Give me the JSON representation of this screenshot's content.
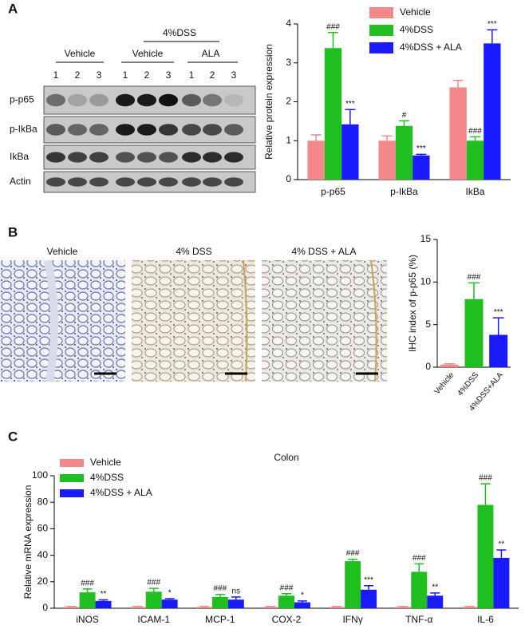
{
  "blot": {
    "group_label": "4%DSS",
    "groups": [
      "Vehicle",
      "Vehicle",
      "ALA"
    ],
    "lanes": [
      "1",
      "2",
      "3",
      "1",
      "2",
      "3",
      "1",
      "2",
      "3"
    ],
    "rows": [
      "p-p65",
      "p-IkBa",
      "IkBa",
      "Actin"
    ]
  },
  "ihc": {
    "images": [
      "Vehicle",
      "4% DSS",
      "4% DSS + ALA"
    ]
  },
  "chart_data": [
    {
      "type": "bar",
      "panel_label": "A",
      "y_label": "Relative protein expression",
      "categories": [
        "p-p65",
        "p-IkBa",
        "IkBa"
      ],
      "series": [
        {
          "name": "Vehicle",
          "color": "#f4878a",
          "values": [
            1.0,
            1.0,
            2.37
          ],
          "errors": [
            0.15,
            0.12,
            0.18
          ]
        },
        {
          "name": "4%DSS",
          "color": "#1fbf1f",
          "values": [
            3.38,
            1.38,
            1.0
          ],
          "errors": [
            0.4,
            0.13,
            0.1
          ],
          "annotations": [
            "###",
            "#",
            "###"
          ]
        },
        {
          "name": "4%DSS + ALA",
          "color": "#1a1aff",
          "values": [
            1.42,
            0.62,
            3.5
          ],
          "errors": [
            0.38,
            0.03,
            0.35
          ],
          "annotations": [
            "***",
            "***",
            "***"
          ]
        }
      ],
      "ylim": [
        0,
        4
      ],
      "yticks": [
        0,
        1,
        2,
        3,
        4
      ],
      "legend": "top-right"
    },
    {
      "type": "bar",
      "panel_label": "B",
      "y_label": "IHC index of p-p65 (%)",
      "categories": [
        "Vehicle",
        "4%DSS",
        "4%DSS+ALA"
      ],
      "values": [
        0.3,
        8.0,
        3.8
      ],
      "errors": [
        0.1,
        1.9,
        2.0
      ],
      "colors": [
        "#f4878a",
        "#1fbf1f",
        "#1a1aff"
      ],
      "annotations": [
        null,
        "###",
        "***"
      ],
      "ylim": [
        0,
        15
      ],
      "yticks": [
        0,
        5,
        10,
        15
      ]
    },
    {
      "type": "bar",
      "panel_label": "C",
      "title": "Colon",
      "y_label": "Relative  mRNA expression",
      "categories": [
        "iNOS",
        "ICAM-1",
        "MCP-1",
        "COX-2",
        "IFNγ",
        "TNF-α",
        "IL-6"
      ],
      "series": [
        {
          "name": "Vehicle",
          "color": "#f4878a",
          "values": [
            1,
            1,
            1,
            1,
            1,
            1,
            1
          ],
          "errors": [
            0.3,
            0.3,
            0.3,
            0.3,
            0.3,
            0.3,
            0.3
          ]
        },
        {
          "name": "4%DSS",
          "color": "#1fbf1f",
          "values": [
            12,
            12.5,
            8.5,
            9.5,
            35.5,
            27.5,
            78
          ],
          "errors": [
            2.5,
            2.5,
            2,
            1.5,
            1.5,
            6,
            16
          ],
          "annotations": [
            "###",
            "###",
            "###",
            "###",
            "###",
            "###",
            "###"
          ]
        },
        {
          "name": "4%DSS + ALA",
          "color": "#1a1aff",
          "values": [
            5.5,
            6.5,
            6.5,
            4.5,
            14,
            9.5,
            38
          ],
          "errors": [
            0.8,
            0.7,
            2,
            1,
            3,
            2,
            6
          ],
          "annotations": [
            "**",
            "*",
            "ns",
            "*",
            "***",
            "**",
            "**"
          ]
        }
      ],
      "ylim": [
        0,
        100
      ],
      "yticks": [
        0,
        20,
        40,
        60,
        80,
        100
      ],
      "legend": "top-left"
    }
  ]
}
